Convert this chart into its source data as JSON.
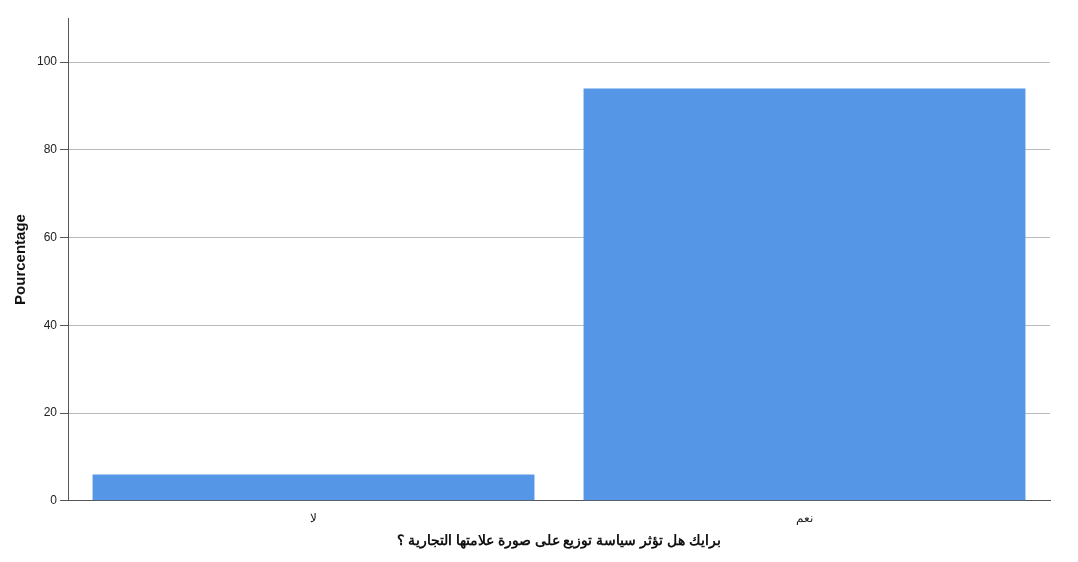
{
  "chart_data": {
    "type": "bar",
    "xlabel": "برايك هل تؤثر سياسة توزيع على صورة علامتها التجارية ؟",
    "ylabel": "Pourcentage",
    "categories": [
      "لا",
      "نعم"
    ],
    "values": [
      6,
      94
    ],
    "color": "#5596e6",
    "ylim": [
      0,
      110
    ],
    "yticks": [
      0,
      20,
      40,
      60,
      80,
      100
    ],
    "grid": "y",
    "legend": false
  }
}
